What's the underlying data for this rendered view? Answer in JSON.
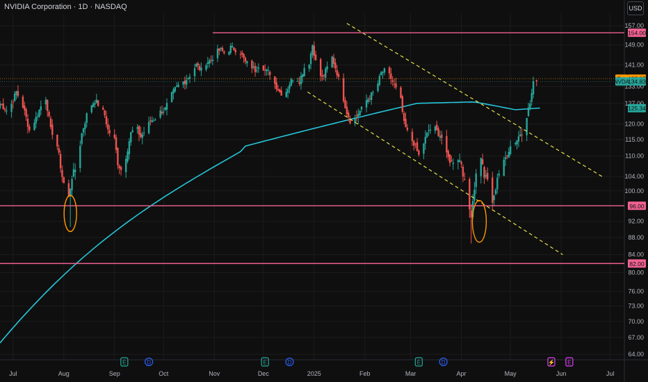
{
  "header": {
    "title": "NVIDIA Corporation · 1D · NASDAQ",
    "currency_button": "USD"
  },
  "chart_data": {
    "type": "candlestick",
    "symbol": "NVDA",
    "y_ticks": [
      157.0,
      149.0,
      141.0,
      133.0,
      127.0,
      120.0,
      115.0,
      110.0,
      104.0,
      100.0,
      92.0,
      88.0,
      84.0,
      80.0,
      76.0,
      73.0,
      70.0,
      67.0,
      64.0
    ],
    "x_ticks": [
      "Jul",
      "Aug",
      "Sep",
      "Oct",
      "Nov",
      "Dec",
      "2025",
      "Feb",
      "Mar",
      "Apr",
      "May",
      "Jun",
      "Jul"
    ],
    "price_labels": [
      {
        "text": "154.00",
        "value": 154.0,
        "color": "#f06292"
      },
      {
        "text": "135.87",
        "value": 135.87,
        "color": "#ff9800",
        "tag": "Pre"
      },
      {
        "text": "134.83",
        "value": 134.83,
        "color": "#26a69a",
        "tag": "NVDA"
      },
      {
        "text": "125.34",
        "value": 125.34,
        "color": "#26a69a"
      },
      {
        "text": "96.00",
        "value": 96.0,
        "color": "#f06292"
      },
      {
        "text": "82.00",
        "value": 82.0,
        "color": "#f06292"
      }
    ],
    "horizontal_levels": [
      154.0,
      96.0,
      82.0
    ],
    "last_price": 134.83,
    "premarket_price": 135.87,
    "moving_average_last": 125.34,
    "event_markers": [
      {
        "x": "Aug",
        "glyph": "E",
        "color": "#26a69a"
      },
      {
        "x": "Sep",
        "glyph": "D",
        "color": "#2962ff"
      },
      {
        "x": "Nov",
        "glyph": "E",
        "color": "#26a69a"
      },
      {
        "x": "Dec",
        "glyph": "D",
        "color": "#2962ff"
      },
      {
        "x": "Mar",
        "glyph": "E",
        "color": "#26a69a"
      },
      {
        "x": "Mar",
        "glyph": "D",
        "color": "#2962ff"
      },
      {
        "x": "May",
        "glyph": "⚡",
        "color": "#e040fb"
      },
      {
        "x": "May",
        "glyph": "E",
        "color": "#e040fb"
      }
    ]
  }
}
